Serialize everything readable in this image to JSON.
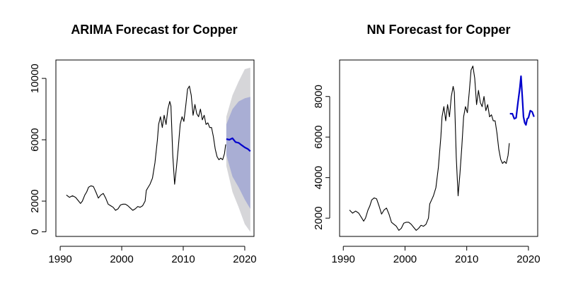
{
  "chart_data": [
    {
      "type": "line",
      "title": "ARIMA Forecast for Copper",
      "xlabel": "",
      "ylabel": "",
      "xlim": [
        1990,
        2021
      ],
      "ylim": [
        0,
        10000
      ],
      "x_ticks": [
        1990,
        2000,
        2010,
        2020
      ],
      "y_ticks": [
        0,
        2000,
        6000,
        10000
      ],
      "colors": {
        "history": "#000000",
        "forecast": "#0000cc",
        "band80": "#a9aed4",
        "band95": "#d6d6d9"
      },
      "series": [
        {
          "name": "history",
          "x": [
            1991.0,
            1991.5,
            1992.0,
            1992.5,
            1993.0,
            1993.3,
            1993.6,
            1994.0,
            1994.3,
            1994.6,
            1995.0,
            1995.4,
            1995.8,
            1996.2,
            1996.6,
            1997.0,
            1997.4,
            1997.8,
            1998.2,
            1998.6,
            1999.0,
            1999.4,
            1999.8,
            2000.2,
            2000.6,
            2001.0,
            2001.4,
            2001.8,
            2002.2,
            2002.6,
            2003.0,
            2003.4,
            2003.8,
            2004.0,
            2004.3,
            2004.6,
            2005.0,
            2005.4,
            2005.8,
            2006.0,
            2006.3,
            2006.6,
            2006.9,
            2007.2,
            2007.5,
            2007.8,
            2008.0,
            2008.3,
            2008.6,
            2008.9,
            2009.2,
            2009.5,
            2009.8,
            2010.1,
            2010.4,
            2010.7,
            2011.0,
            2011.3,
            2011.6,
            2011.9,
            2012.2,
            2012.5,
            2012.8,
            2013.1,
            2013.4,
            2013.7,
            2014.0,
            2014.3,
            2014.6,
            2014.9,
            2015.2,
            2015.5,
            2015.8,
            2016.1,
            2016.4,
            2016.7,
            2016.9
          ],
          "values": [
            2400,
            2250,
            2350,
            2250,
            2000,
            1850,
            2000,
            2400,
            2600,
            2900,
            3000,
            2950,
            2600,
            2200,
            2400,
            2500,
            2200,
            1800,
            1700,
            1600,
            1400,
            1500,
            1750,
            1800,
            1800,
            1700,
            1550,
            1400,
            1500,
            1650,
            1600,
            1700,
            2000,
            2700,
            2900,
            3100,
            3500,
            4500,
            6000,
            7000,
            7500,
            6800,
            7600,
            7000,
            8000,
            8500,
            8200,
            5000,
            3100,
            4200,
            5500,
            7000,
            7500,
            7200,
            8200,
            9300,
            9500,
            8900,
            7600,
            8300,
            7700,
            7500,
            8000,
            7300,
            7600,
            7000,
            7100,
            6800,
            6800,
            6200,
            5400,
            4900,
            4700,
            4800,
            4700,
            5100,
            5700
          ]
        },
        {
          "name": "forecast",
          "x": [
            2017.0,
            2017.5,
            2018.0,
            2018.5,
            2019.0,
            2019.5,
            2020.0,
            2020.5,
            2020.9
          ],
          "values": [
            6050,
            6000,
            6100,
            5850,
            5800,
            5650,
            5500,
            5400,
            5250
          ]
        }
      ],
      "bands": [
        {
          "name": "95%",
          "x": [
            2017.0,
            2018.0,
            2019.0,
            2020.0,
            2020.9
          ],
          "lower": [
            4300,
            2600,
            1600,
            500,
            0
          ],
          "upper": [
            7500,
            8900,
            9800,
            10600,
            10700
          ]
        },
        {
          "name": "80%",
          "x": [
            2017.0,
            2018.0,
            2019.0,
            2020.0,
            2020.9
          ],
          "lower": [
            5000,
            3600,
            2900,
            2100,
            1500
          ],
          "upper": [
            7000,
            8000,
            8500,
            8700,
            8800
          ]
        }
      ]
    },
    {
      "type": "line",
      "title": "NN Forecast for Copper",
      "xlabel": "",
      "ylabel": "",
      "xlim": [
        1990,
        2021
      ],
      "ylim": [
        1300,
        9600
      ],
      "x_ticks": [
        1990,
        2000,
        2010,
        2020
      ],
      "y_ticks": [
        2000,
        4000,
        6000,
        8000
      ],
      "colors": {
        "history": "#000000",
        "forecast": "#0000cc"
      },
      "series": [
        {
          "name": "history",
          "x": [
            1991.0,
            1991.5,
            1992.0,
            1992.5,
            1993.0,
            1993.3,
            1993.6,
            1994.0,
            1994.3,
            1994.6,
            1995.0,
            1995.4,
            1995.8,
            1996.2,
            1996.6,
            1997.0,
            1997.4,
            1997.8,
            1998.2,
            1998.6,
            1999.0,
            1999.4,
            1999.8,
            2000.2,
            2000.6,
            2001.0,
            2001.4,
            2001.8,
            2002.2,
            2002.6,
            2003.0,
            2003.4,
            2003.8,
            2004.0,
            2004.3,
            2004.6,
            2005.0,
            2005.4,
            2005.8,
            2006.0,
            2006.3,
            2006.6,
            2006.9,
            2007.2,
            2007.5,
            2007.8,
            2008.0,
            2008.3,
            2008.6,
            2008.9,
            2009.2,
            2009.5,
            2009.8,
            2010.1,
            2010.4,
            2010.7,
            2011.0,
            2011.3,
            2011.6,
            2011.9,
            2012.2,
            2012.5,
            2012.8,
            2013.1,
            2013.4,
            2013.7,
            2014.0,
            2014.3,
            2014.6,
            2014.9,
            2015.2,
            2015.5,
            2015.8,
            2016.1,
            2016.4,
            2016.7,
            2016.9
          ],
          "values": [
            2400,
            2250,
            2350,
            2250,
            2000,
            1850,
            2000,
            2400,
            2600,
            2900,
            3000,
            2950,
            2600,
            2200,
            2400,
            2500,
            2200,
            1800,
            1700,
            1600,
            1400,
            1500,
            1750,
            1800,
            1800,
            1700,
            1550,
            1400,
            1500,
            1650,
            1600,
            1700,
            2000,
            2700,
            2900,
            3100,
            3500,
            4500,
            6000,
            7000,
            7500,
            6800,
            7600,
            7000,
            8000,
            8500,
            8200,
            5000,
            3100,
            4200,
            5500,
            7000,
            7500,
            7200,
            8200,
            9300,
            9500,
            8900,
            7600,
            8300,
            7700,
            7500,
            8000,
            7300,
            7600,
            7000,
            7100,
            6800,
            6800,
            6200,
            5400,
            4900,
            4700,
            4800,
            4700,
            5100,
            5700
          ]
        },
        {
          "name": "forecast",
          "x": [
            2017.0,
            2017.4,
            2017.7,
            2018.0,
            2018.3,
            2018.6,
            2018.8,
            2019.0,
            2019.2,
            2019.4,
            2019.6,
            2019.8,
            2020.0,
            2020.3,
            2020.6,
            2020.9
          ],
          "values": [
            7150,
            7150,
            6900,
            6950,
            7700,
            8400,
            9000,
            8000,
            7000,
            6700,
            6600,
            6900,
            6950,
            7300,
            7250,
            7000
          ]
        }
      ]
    }
  ]
}
